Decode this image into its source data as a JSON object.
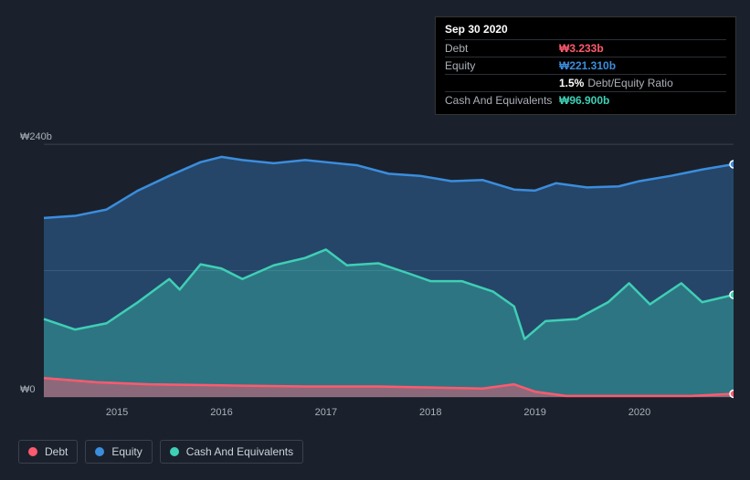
{
  "tooltip": {
    "date": "Sep 30 2020",
    "rows": [
      {
        "label": "Debt",
        "value": "₩3.233b",
        "color": "#ff5a6e",
        "note": ""
      },
      {
        "label": "Equity",
        "value": "₩221.310b",
        "color": "#3b8ddd",
        "note": ""
      },
      {
        "label": "",
        "value": "1.5%",
        "color": "#ffffff",
        "note": "Debt/Equity Ratio"
      },
      {
        "label": "Cash And Equivalents",
        "value": "₩96.900b",
        "color": "#3fcfb5",
        "note": ""
      }
    ]
  },
  "chart": {
    "type": "area",
    "background": "#1a212c",
    "grid_color": "#3a414d",
    "y_axis": {
      "ticks": [
        {
          "value": 0,
          "label": "₩0"
        },
        {
          "value": 120,
          "label": ""
        },
        {
          "value": 240,
          "label": "₩240b"
        }
      ],
      "min": 0,
      "max": 260
    },
    "x_axis": {
      "min": 2014.3,
      "max": 2020.9,
      "ticks": [
        2015,
        2016,
        2017,
        2018,
        2019,
        2020
      ]
    },
    "series": [
      {
        "name": "Equity",
        "color": "#3b8ddd",
        "fill_opacity": 0.35,
        "points": [
          [
            2014.3,
            170
          ],
          [
            2014.6,
            172
          ],
          [
            2014.9,
            178
          ],
          [
            2015.2,
            196
          ],
          [
            2015.5,
            210
          ],
          [
            2015.8,
            223
          ],
          [
            2016.0,
            228
          ],
          [
            2016.2,
            225
          ],
          [
            2016.5,
            222
          ],
          [
            2016.8,
            225
          ],
          [
            2017.0,
            223
          ],
          [
            2017.3,
            220
          ],
          [
            2017.6,
            212
          ],
          [
            2017.9,
            210
          ],
          [
            2018.2,
            205
          ],
          [
            2018.5,
            206
          ],
          [
            2018.8,
            197
          ],
          [
            2019.0,
            196
          ],
          [
            2019.2,
            203
          ],
          [
            2019.5,
            199
          ],
          [
            2019.8,
            200
          ],
          [
            2020.0,
            205
          ],
          [
            2020.3,
            210
          ],
          [
            2020.6,
            216
          ],
          [
            2020.9,
            221
          ]
        ]
      },
      {
        "name": "Cash And Equivalents",
        "color": "#3fcfb5",
        "fill_opacity": 0.35,
        "points": [
          [
            2014.3,
            74
          ],
          [
            2014.6,
            64
          ],
          [
            2014.9,
            70
          ],
          [
            2015.2,
            90
          ],
          [
            2015.5,
            112
          ],
          [
            2015.6,
            102
          ],
          [
            2015.8,
            126
          ],
          [
            2016.0,
            122
          ],
          [
            2016.2,
            112
          ],
          [
            2016.5,
            125
          ],
          [
            2016.8,
            132
          ],
          [
            2017.0,
            140
          ],
          [
            2017.2,
            125
          ],
          [
            2017.5,
            127
          ],
          [
            2017.8,
            117
          ],
          [
            2018.0,
            110
          ],
          [
            2018.3,
            110
          ],
          [
            2018.6,
            100
          ],
          [
            2018.8,
            86
          ],
          [
            2018.9,
            55
          ],
          [
            2019.1,
            72
          ],
          [
            2019.4,
            74
          ],
          [
            2019.7,
            90
          ],
          [
            2019.9,
            108
          ],
          [
            2020.1,
            88
          ],
          [
            2020.4,
            108
          ],
          [
            2020.6,
            90
          ],
          [
            2020.9,
            97
          ]
        ]
      },
      {
        "name": "Debt",
        "color": "#ff5a6e",
        "fill_opacity": 0.45,
        "points": [
          [
            2014.3,
            18
          ],
          [
            2014.8,
            14
          ],
          [
            2015.3,
            12
          ],
          [
            2016.0,
            11
          ],
          [
            2016.8,
            10
          ],
          [
            2017.5,
            10
          ],
          [
            2018.0,
            9
          ],
          [
            2018.5,
            8
          ],
          [
            2018.8,
            12
          ],
          [
            2019.0,
            5
          ],
          [
            2019.3,
            1
          ],
          [
            2020.0,
            1
          ],
          [
            2020.5,
            1
          ],
          [
            2020.9,
            3
          ]
        ]
      }
    ],
    "legend": [
      {
        "label": "Debt",
        "color": "#ff5a6e"
      },
      {
        "label": "Equity",
        "color": "#3b8ddd"
      },
      {
        "label": "Cash And Equivalents",
        "color": "#3fcfb5"
      }
    ]
  }
}
